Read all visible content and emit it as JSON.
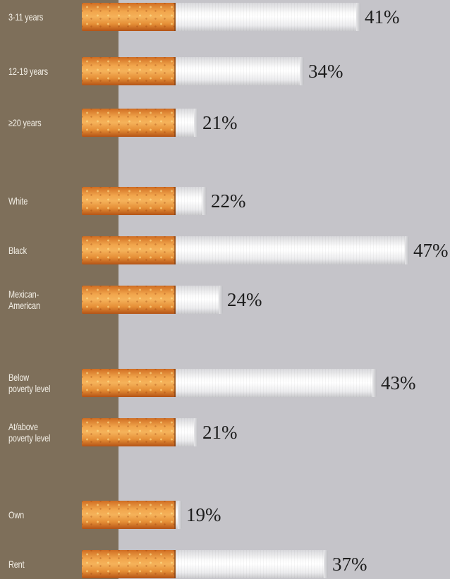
{
  "chart_data": {
    "type": "bar",
    "title": "",
    "unit": "%",
    "categories": [
      "3-11 years",
      "12-19 years",
      "≥20 years",
      "White",
      "Black",
      "Mexican-\nAmerican",
      "Below\npoverty level",
      "At/above\npoverty level",
      "Own",
      "Rent"
    ],
    "values": [
      41,
      34,
      21,
      22,
      47,
      24,
      43,
      21,
      19,
      37
    ],
    "value_labels": [
      "41%",
      "34%",
      "21%",
      "22%",
      "47%",
      "24%",
      "43%",
      "21%",
      "19%",
      "37%"
    ],
    "groups": [
      [
        "3-11 years",
        "12-19 years",
        "≥20 years"
      ],
      [
        "White",
        "Black",
        "Mexican-\nAmerican"
      ],
      [
        "Below\npoverty level",
        "At/above\npoverty level"
      ],
      [
        "Own",
        "Rent"
      ]
    ],
    "orientation": "horizontal",
    "grid": false
  },
  "colors": {
    "left_column": "#7e6f5a",
    "background": "#c5c4c9",
    "filter": "#f1a54c",
    "paper": "#ffffff"
  }
}
